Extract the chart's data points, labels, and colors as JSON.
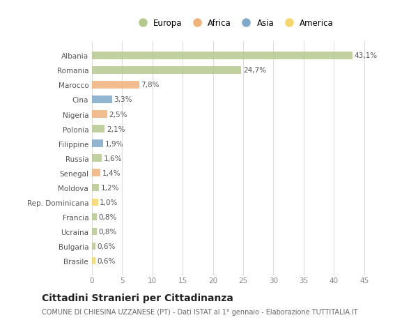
{
  "countries": [
    "Albania",
    "Romania",
    "Marocco",
    "Cina",
    "Nigeria",
    "Polonia",
    "Filippine",
    "Russia",
    "Senegal",
    "Moldova",
    "Rep. Dominicana",
    "Francia",
    "Ucraina",
    "Bulgaria",
    "Brasile"
  ],
  "values": [
    43.1,
    24.7,
    7.8,
    3.3,
    2.5,
    2.1,
    1.9,
    1.6,
    1.4,
    1.2,
    1.0,
    0.8,
    0.8,
    0.6,
    0.6
  ],
  "labels": [
    "43,1%",
    "24,7%",
    "7,8%",
    "3,3%",
    "2,5%",
    "2,1%",
    "1,9%",
    "1,6%",
    "1,4%",
    "1,2%",
    "1,0%",
    "0,8%",
    "0,8%",
    "0,6%",
    "0,6%"
  ],
  "colors": [
    "#b5c98e",
    "#b5c98e",
    "#f0b27a",
    "#7fa8c9",
    "#f0b27a",
    "#b5c98e",
    "#7fa8c9",
    "#b5c98e",
    "#f0b27a",
    "#b5c98e",
    "#f5d76e",
    "#b5c98e",
    "#b5c98e",
    "#b5c98e",
    "#f5d76e"
  ],
  "legend_labels": [
    "Europa",
    "Africa",
    "Asia",
    "America"
  ],
  "legend_colors": [
    "#b5c98e",
    "#f0b27a",
    "#7fa8c9",
    "#f5d76e"
  ],
  "title": "Cittadini Stranieri per Cittadinanza",
  "subtitle": "COMUNE DI CHIESINA UZZANESE (PT) - Dati ISTAT al 1° gennaio - Elaborazione TUTTITALIA.IT",
  "xlim": [
    0,
    47
  ],
  "xticks": [
    0,
    5,
    10,
    15,
    20,
    25,
    30,
    35,
    40,
    45
  ],
  "background_color": "#ffffff",
  "grid_color": "#dddddd",
  "bar_height": 0.5,
  "label_fontsize": 7.5,
  "tick_fontsize": 7.5,
  "title_fontsize": 10,
  "subtitle_fontsize": 7
}
